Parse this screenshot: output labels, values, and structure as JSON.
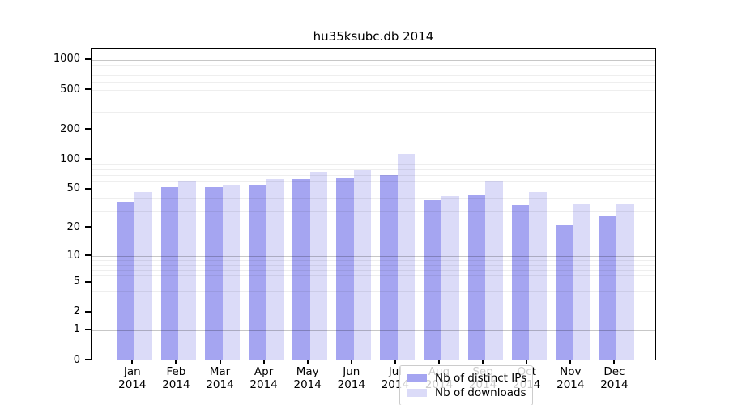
{
  "chart_data": {
    "type": "bar",
    "title": "hu35ksubc.db 2014",
    "categories": [
      "Jan",
      "Feb",
      "Mar",
      "Apr",
      "May",
      "Jun",
      "Jul",
      "Aug",
      "Sep",
      "Oct",
      "Nov",
      "Dec"
    ],
    "year": "2014",
    "series": [
      {
        "name": "Nb of distinct IPs",
        "color": "#a5a5f1",
        "values": [
          37,
          52,
          52,
          55,
          62,
          64,
          69,
          38,
          43,
          34,
          21,
          26
        ]
      },
      {
        "name": "Nb of downloads",
        "color": "#dbdbf8",
        "values": [
          46,
          60,
          55,
          62,
          74,
          77,
          112,
          42,
          59,
          46,
          35,
          35
        ]
      }
    ],
    "yscale": "log10(1+v)",
    "yticks": [
      0,
      1,
      2,
      5,
      10,
      20,
      50,
      100,
      200,
      500,
      1000
    ],
    "major_gridlines": [
      1,
      10,
      100,
      1000
    ],
    "grid": true,
    "legend_position": "bottom-center",
    "xlabel": "",
    "ylabel": ""
  }
}
